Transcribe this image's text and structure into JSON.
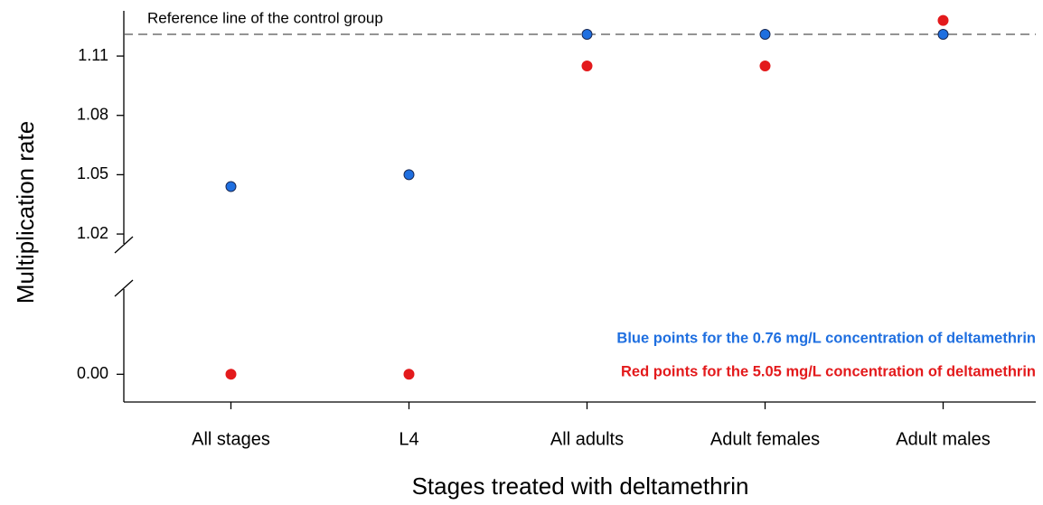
{
  "chart_data": {
    "type": "scatter",
    "x_label": "Stages treated with deltamethrin",
    "y_label": "Multiplication rate",
    "categories": [
      "All stages",
      "L4",
      "All adults",
      "Adult females",
      "Adult males"
    ],
    "series": [
      {
        "name": "Blue points for the 0.76 mg/L concentration of deltamethrin",
        "color": "#1f6fe0",
        "values": [
          1.044,
          1.05,
          1.121,
          1.121,
          1.121
        ]
      },
      {
        "name": "Red points for the 5.05 mg/L concentration of deltamethrin",
        "color": "#e31a1c",
        "values": [
          0,
          0,
          1.105,
          1.105,
          1.128
        ]
      }
    ],
    "y_segments": [
      {
        "ylim": [
          -0.014,
          0.043
        ],
        "yticks": [
          {
            "value": 0,
            "label": "0.00"
          }
        ]
      },
      {
        "ylim": [
          1.015,
          1.1315
        ],
        "yticks": [
          1.02,
          1.05,
          1.08,
          1.11
        ]
      }
    ],
    "reference_line": {
      "label": "Reference line of the control group",
      "value": 1.121
    }
  }
}
